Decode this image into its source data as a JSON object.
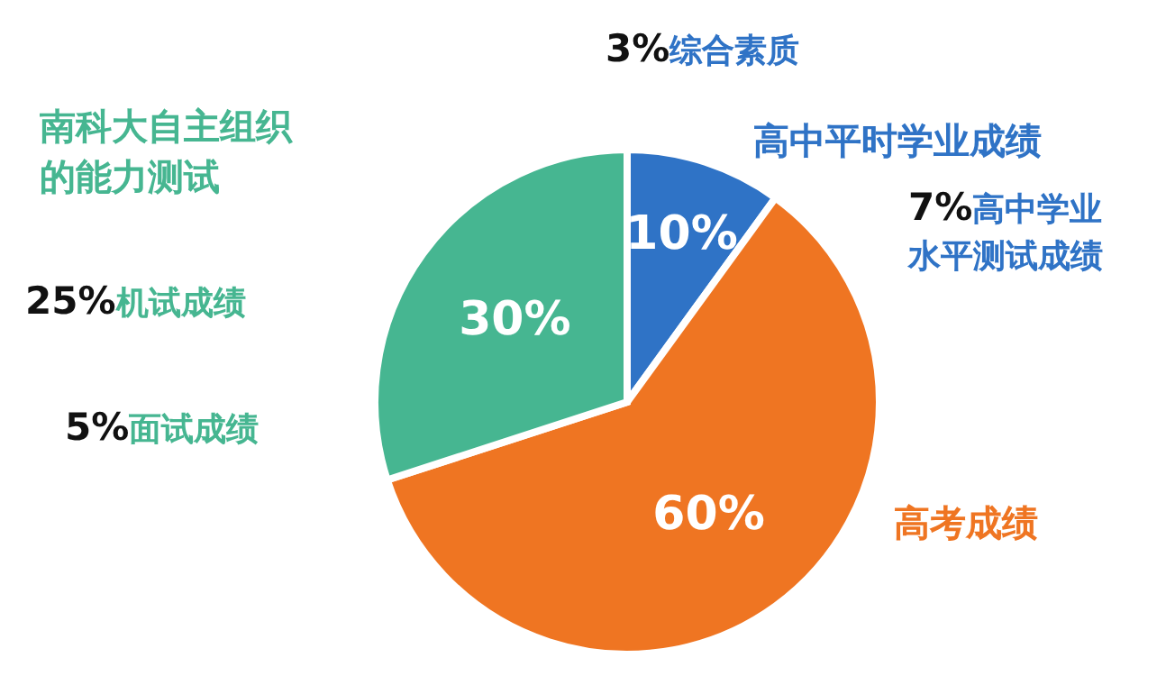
{
  "chart_data": {
    "type": "pie",
    "categories": [
      "高中平时学业成绩",
      "高考成绩",
      "南科大自主组织的能力测试"
    ],
    "values": [
      10,
      60,
      30
    ],
    "colors": [
      "#2f73c6",
      "#ef7522",
      "#46b691"
    ],
    "value_labels": [
      "10%",
      "60%",
      "30%"
    ],
    "annotations": [
      "3%综合素质",
      "7%高中学业水平测试成绩",
      "25%机试成绩",
      "5%面试成绩"
    ],
    "legend": false
  }
}
